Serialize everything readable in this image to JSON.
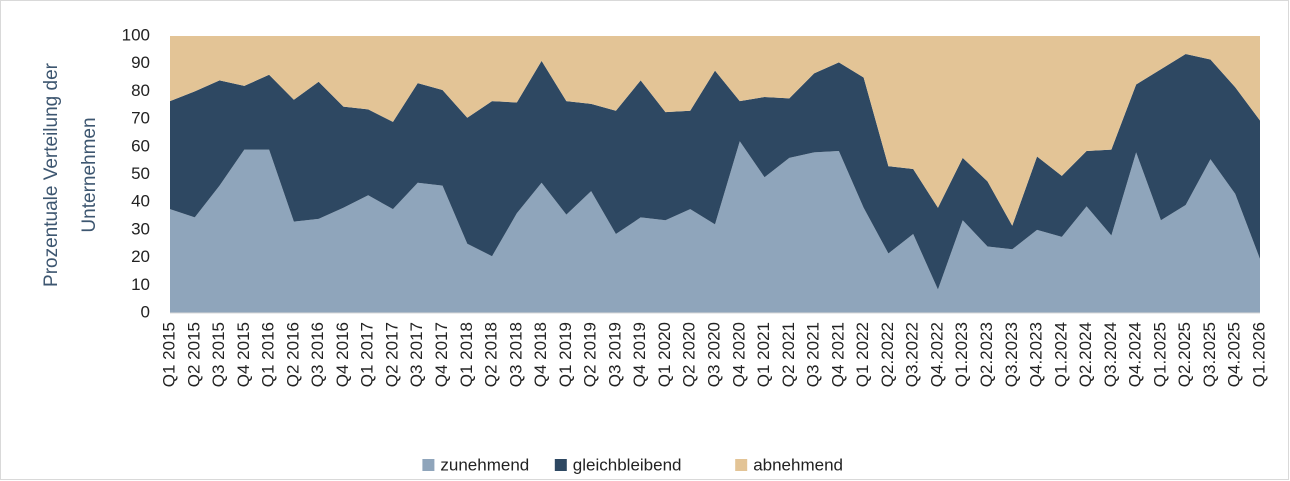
{
  "chart_data": {
    "type": "stacked_area",
    "y_label": [
      "Prozentuale Verteilung der",
      "Unternehmen"
    ],
    "categories": [
      "Q1 2015",
      "Q2 2015",
      "Q3 2015",
      "Q4 2015",
      "Q1 2016",
      "Q2 2016",
      "Q3 2016",
      "Q4 2016",
      "Q1 2017",
      "Q2 2017",
      "Q3 2017",
      "Q4 2017",
      "Q1 2018",
      "Q2 2018",
      "Q3 2018",
      "Q4 2018",
      "Q1 2019",
      "Q2 2019",
      "Q3 2019",
      "Q4 2019",
      "Q1 2020",
      "Q2 2020",
      "Q3 2020",
      "Q4 2020",
      "Q1 2021",
      "Q2 2021",
      "Q3 2021",
      "Q4 2021",
      "Q1 2022",
      "Q2.2022",
      "Q3.2022",
      "Q4.2022",
      "Q1.2023",
      "Q2.2023",
      "Q3.2023",
      "Q4.2023",
      "Q1.2024",
      "Q2.2024",
      "Q3.2024",
      "Q4.2024",
      "Q1.2025",
      "Q2.2025",
      "Q3.2025",
      "Q4.2025",
      "Q1.2026"
    ],
    "series": [
      {
        "name": "zunehmend",
        "color": "#8fa5bb",
        "values": [
          37.5,
          34.5,
          46,
          59,
          59,
          33,
          34,
          38,
          42.5,
          37.5,
          47,
          46,
          25,
          20.5,
          36,
          47,
          35.5,
          44,
          28.5,
          34.5,
          33.5,
          37.5,
          32,
          62,
          49,
          56,
          58,
          58.5,
          38,
          21.5,
          28.5,
          8.5,
          33.5,
          24,
          23,
          30,
          27.5,
          38.5,
          28,
          58,
          33.5,
          39,
          55.5,
          43,
          19.5
        ]
      },
      {
        "name": "gleichbleibend",
        "color": "#2e4862",
        "values": [
          39,
          45.5,
          38,
          23,
          27,
          44,
          49.5,
          36.5,
          31,
          31.5,
          36,
          34.5,
          45.5,
          56,
          40,
          44,
          41,
          31.5,
          44.5,
          49.5,
          39,
          35.5,
          55.5,
          14.5,
          29,
          21.5,
          28.5,
          32,
          47,
          31.5,
          23.5,
          29.5,
          22.5,
          23.5,
          8.5,
          26.5,
          22,
          20,
          31,
          24.5,
          54.5,
          54.5,
          36,
          38.5,
          50
        ]
      },
      {
        "name": "abnehmend",
        "color": "#e3c496",
        "values": [
          23.5,
          20,
          16,
          18,
          14,
          23,
          16.5,
          25.5,
          26.5,
          31,
          17,
          19.5,
          29.5,
          23.5,
          24,
          9,
          23.5,
          24.5,
          27,
          16,
          27.5,
          27,
          12.5,
          23.5,
          22,
          22.5,
          13.5,
          9.5,
          15,
          47,
          48,
          62,
          44,
          52.5,
          68.5,
          43.5,
          50.5,
          41.5,
          41,
          17.5,
          12,
          6.5,
          8.5,
          18.5,
          30.5
        ]
      }
    ],
    "ylim": [
      0,
      100
    ],
    "yticks": [
      0,
      10,
      20,
      30,
      40,
      50,
      60,
      70,
      80,
      90,
      100
    ],
    "grid": false,
    "legend": "bottom"
  }
}
